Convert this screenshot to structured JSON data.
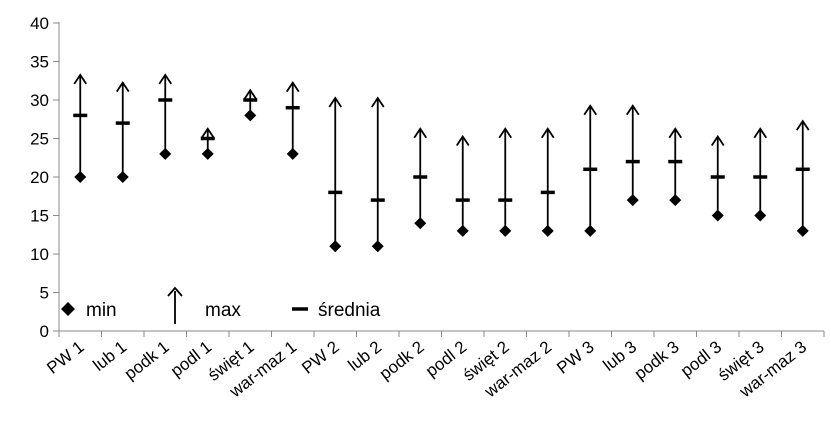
{
  "chart_data": {
    "type": "stock",
    "categories": [
      "PW 1",
      "lub 1",
      "podk 1",
      "podl 1",
      "święt 1",
      "war-maz 1",
      "PW 2",
      "lub 2",
      "podk 2",
      "podl 2",
      "święt 2",
      "war-maz 2",
      "PW 3",
      "lub 3",
      "podk 3",
      "podl 3",
      "święt 3",
      "war-maz 3"
    ],
    "series": [
      {
        "name": "min",
        "marker": "diamond",
        "values": [
          20,
          20,
          23,
          23,
          28,
          23,
          11,
          11,
          14,
          13,
          13,
          13,
          13,
          17,
          17,
          15,
          15,
          13
        ]
      },
      {
        "name": "max",
        "marker": "up-arrow",
        "values": [
          33,
          32,
          33,
          26,
          31,
          32,
          30,
          30,
          26,
          25,
          26,
          26,
          29,
          29,
          26,
          25,
          26,
          27
        ]
      },
      {
        "name": "średnia",
        "marker": "dash",
        "values": [
          28,
          27,
          30,
          25,
          30,
          29,
          18,
          17,
          20,
          17,
          17,
          18,
          21,
          22,
          22,
          20,
          20,
          21
        ]
      }
    ],
    "yticks": [
      0,
      5,
      10,
      15,
      20,
      25,
      30,
      35,
      40
    ],
    "ylim": [
      0,
      40
    ],
    "grid": false,
    "legend_position": "bottom-left",
    "title": "",
    "xlabel": "",
    "ylabel": ""
  }
}
